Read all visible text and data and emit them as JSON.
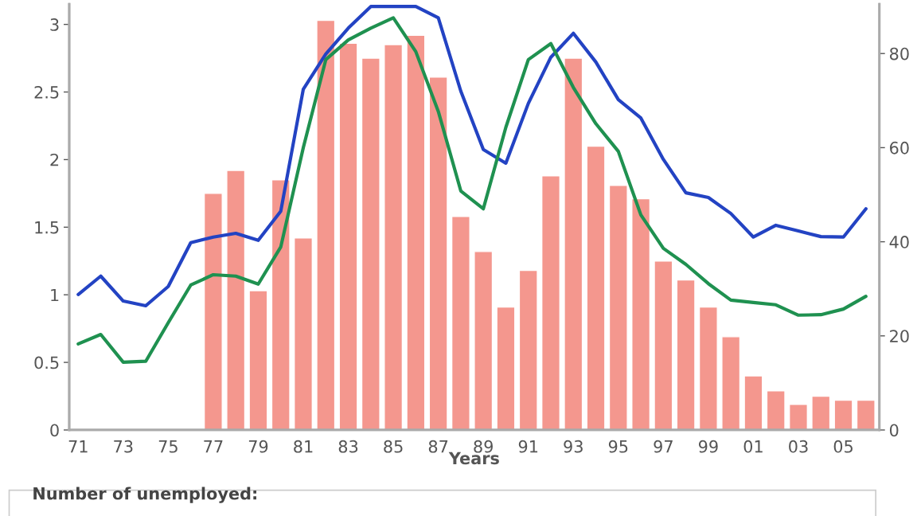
{
  "chart_data": {
    "type": "bar",
    "xlabel": "Years",
    "categories": [
      "71",
      null,
      "73",
      null,
      "75",
      null,
      "77",
      null,
      "79",
      null,
      "81",
      null,
      "83",
      null,
      "85",
      null,
      "87",
      null,
      "89",
      null,
      "91",
      null,
      "93",
      null,
      "95",
      null,
      "97",
      null,
      "99",
      null,
      "01",
      null,
      "03",
      null,
      "05",
      null
    ],
    "series": [
      {
        "color": "#f4978e",
        "values": [
          null,
          null,
          null,
          null,
          null,
          null,
          1.75,
          1.92,
          1.03,
          1.85,
          1.42,
          3.03,
          2.86,
          2.75,
          2.85,
          2.92,
          2.61,
          1.58,
          1.32,
          0.91,
          1.18,
          1.88,
          2.75,
          2.1,
          1.81,
          1.71,
          1.25,
          1.11,
          0.91,
          0.69,
          0.4,
          0.29,
          0.19,
          0.25,
          0.22,
          0.22
        ]
      },
      {
        "type": "line",
        "axis": "y2",
        "color": "#2343c3",
        "values": [
          28.8,
          32.7,
          27.4,
          26.4,
          30.5,
          39.8,
          41,
          41.8,
          40.3,
          46.5,
          72.4,
          79.9,
          85.4,
          90,
          90,
          90,
          87.6,
          72,
          59.6,
          56.7,
          69.4,
          79.2,
          84.3,
          78.2,
          70.2,
          66.3,
          57.5,
          50.4,
          49.4,
          46,
          41,
          43.5,
          42.3,
          41.1,
          41,
          47
        ]
      },
      {
        "type": "line",
        "axis": "y2",
        "color": "#1f9150",
        "values": [
          18.3,
          20.3,
          14.4,
          14.6,
          22.8,
          30.8,
          33,
          32.7,
          31,
          38.9,
          60,
          78.7,
          82.9,
          85.4,
          87.6,
          80.4,
          67.7,
          50.8,
          47,
          64.3,
          78.7,
          82.1,
          72.8,
          65.1,
          59.2,
          45.7,
          38.6,
          35.2,
          31.1,
          27.6,
          27.1,
          26.6,
          24.4,
          24.5,
          25.7,
          28.4
        ]
      }
    ],
    "ylim": [
      0,
      3.15
    ],
    "yticks": [
      0,
      0.5,
      1,
      1.5,
      2,
      2.5,
      3
    ],
    "y2lim": [
      0,
      90.5
    ],
    "y2ticks": [
      0,
      20,
      40,
      60,
      80
    ],
    "grid": false,
    "legend": false,
    "marker": "none",
    "line_style": "solid",
    "annotations": [
      "Number of unemployed:"
    ]
  }
}
